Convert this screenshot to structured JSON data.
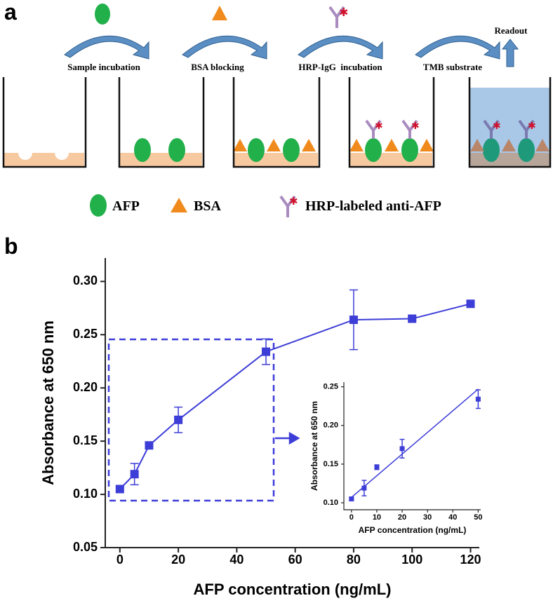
{
  "panel_labels": [
    "a",
    "b"
  ],
  "diagram": {
    "steps": [
      "Sample incubation",
      "BSA blocking",
      "HRP-IgG  incubation",
      "TMB substrate"
    ],
    "readout": "Readout",
    "legend": [
      "AFP",
      "BSA",
      "HRP-labeled anti-AFP"
    ]
  },
  "chart_data": [
    {
      "type": "line",
      "x_label": "AFP concentration (ng/mL)",
      "y_label": "Absorbance at 650 nm",
      "x": [
        0,
        5,
        10,
        20,
        50,
        80,
        100,
        120
      ],
      "values": [
        0.105,
        0.119,
        0.146,
        0.17,
        0.234,
        0.264,
        0.265,
        0.279
      ],
      "errors": [
        0.002,
        0.01,
        0.003,
        0.012,
        0.012,
        0.028,
        0.002,
        0.003
      ],
      "color": "#3d3dd8",
      "xlim": [
        -5,
        123
      ],
      "xticks": [
        0,
        20,
        40,
        60,
        80,
        100,
        120
      ],
      "ylim": [
        0.05,
        0.322
      ],
      "yticks": [
        0.05,
        {
          "value": 0.1,
          "label": "0.10"
        },
        0.15,
        {
          "value": 0.2,
          "label": "0.20"
        },
        0.25,
        {
          "value": 0.3,
          "label": "0.30"
        }
      ]
    },
    {
      "type": "scatter",
      "x_label": "AFP concentration (ng/mL)",
      "y_label": "Absorbance at 650 nm",
      "x": [
        0,
        5,
        10,
        20,
        50
      ],
      "values": [
        0.105,
        0.119,
        0.146,
        0.17,
        0.234
      ],
      "errors": [
        0.002,
        0.01,
        0.003,
        0.012,
        0.012
      ],
      "trend_line": {
        "x": [
          0,
          50
        ],
        "values": [
          0.107,
          0.247
        ]
      },
      "color": "#3d3dd8",
      "xlim": [
        -3,
        51
      ],
      "xticks": [
        0,
        10,
        20,
        30,
        40,
        50
      ],
      "ylim": [
        0.091,
        0.256
      ],
      "yticks": [
        {
          "value": 0.1,
          "label": "0.10"
        },
        0.15,
        {
          "value": 0.2,
          "label": "0.20"
        },
        0.25
      ]
    }
  ]
}
